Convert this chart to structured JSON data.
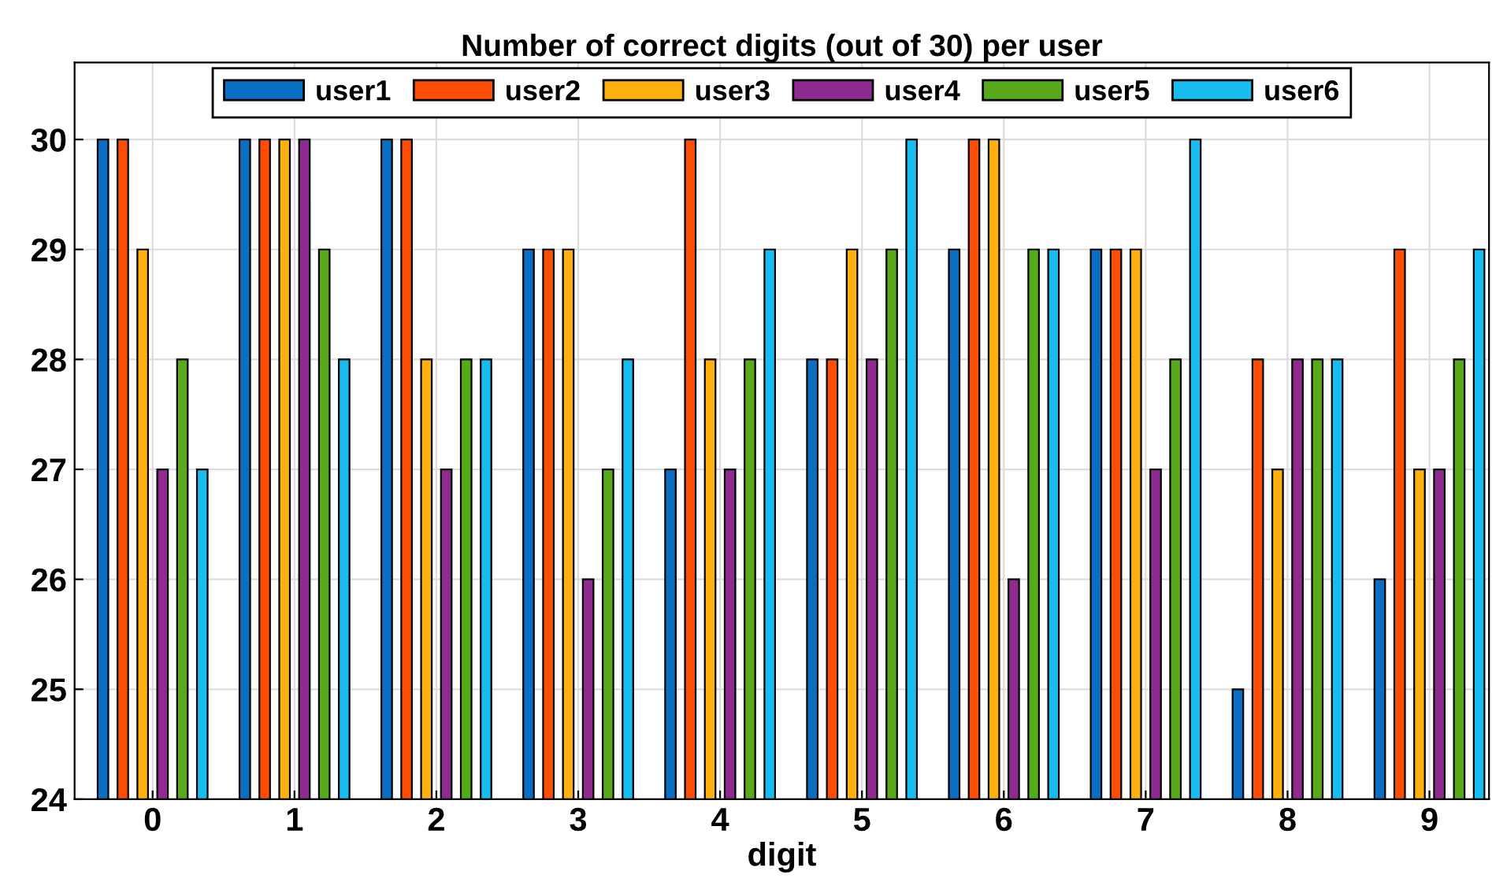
{
  "chart_data": {
    "type": "bar",
    "title": "Number of correct digits (out of 30) per user",
    "xlabel": "digit",
    "categories": [
      "0",
      "1",
      "2",
      "3",
      "4",
      "5",
      "6",
      "7",
      "8",
      "9"
    ],
    "series": [
      {
        "name": "user1",
        "color": "#0a6fc2",
        "values": [
          30,
          30,
          30,
          29,
          27,
          28,
          29,
          29,
          25,
          26
        ]
      },
      {
        "name": "user2",
        "color": "#fc4e05",
        "values": [
          30,
          30,
          30,
          29,
          30,
          28,
          30,
          29,
          28,
          29
        ]
      },
      {
        "name": "user3",
        "color": "#fdb010",
        "values": [
          29,
          30,
          28,
          29,
          28,
          29,
          30,
          29,
          27,
          27
        ]
      },
      {
        "name": "user4",
        "color": "#8e2a90",
        "values": [
          27,
          30,
          27,
          26,
          27,
          28,
          26,
          27,
          28,
          27
        ]
      },
      {
        "name": "user5",
        "color": "#57ab1a",
        "values": [
          28,
          29,
          28,
          27,
          28,
          29,
          29,
          28,
          28,
          28
        ]
      },
      {
        "name": "user6",
        "color": "#18bcee",
        "values": [
          27,
          28,
          28,
          28,
          29,
          30,
          29,
          30,
          28,
          29
        ]
      }
    ],
    "ylim": [
      24,
      30.7
    ],
    "yticks": [
      24,
      25,
      26,
      27,
      28,
      29,
      30
    ],
    "grid": true,
    "legend": "top"
  }
}
